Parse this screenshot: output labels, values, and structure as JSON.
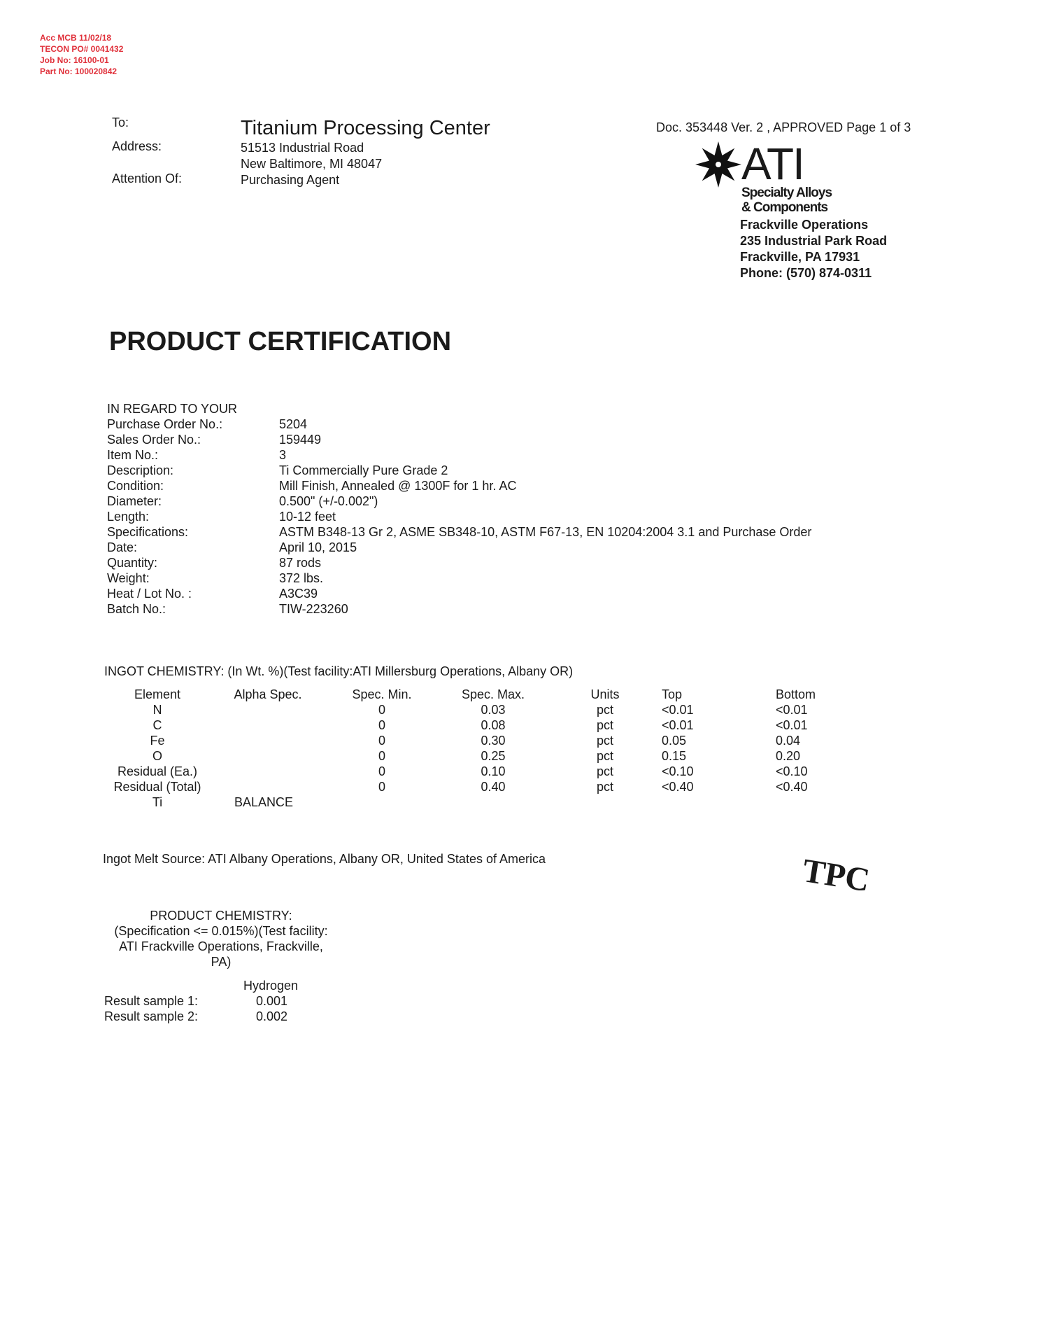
{
  "annotation": {
    "lines": [
      "Acc   MCB  11/02/18",
      "TECON PO# 0041432",
      "Job No: 16100-01",
      "Part No: 100020842"
    ],
    "color": "#e0303a"
  },
  "recipient": {
    "to_label": "To:",
    "address_label": "Address:",
    "attention_label": "Attention Of:",
    "name": "Titanium Processing Center",
    "address_line1": "51513 Industrial Road",
    "address_line2": "New Baltimore, MI 48047",
    "attention": "Purchasing Agent"
  },
  "doc_status": "Doc. 353448 Ver. 2 , APPROVED Page 1 of 3",
  "company": {
    "logo_text": "ATI",
    "logo_icon": "eight-point-star-icon",
    "tagline1": "Specialty Alloys",
    "tagline2": "& Components",
    "division": "Frackville Operations",
    "street": "235 Industrial Park Road",
    "city": "Frackville, PA 17931",
    "phone": "Phone: (570) 874-0311"
  },
  "title": "PRODUCT CERTIFICATION",
  "order": {
    "heading": "IN REGARD TO YOUR",
    "fields": [
      {
        "label": "Purchase Order No.:",
        "value": "5204"
      },
      {
        "label": "Sales Order No.:",
        "value": "159449"
      },
      {
        "label": "Item No.:",
        "value": "3"
      },
      {
        "label": "Description:",
        "value": "Ti Commercially Pure Grade 2"
      },
      {
        "label": "Condition:",
        "value": "Mill Finish, Annealed @ 1300F for 1 hr. AC"
      },
      {
        "label": "Diameter:",
        "value": "0.500\" (+/-0.002\")"
      },
      {
        "label": "Length:",
        "value": "10-12 feet"
      },
      {
        "label": "Specifications:",
        "value": "ASTM B348-13 Gr 2, ASME SB348-10, ASTM F67-13, EN 10204:2004 3.1 and Purchase Order"
      },
      {
        "label": "Date:",
        "value": "April 10, 2015"
      },
      {
        "label": "Quantity:",
        "value": "87 rods"
      },
      {
        "label": "Weight:",
        "value": "372 lbs."
      },
      {
        "label": "Heat / Lot No. :",
        "value": "A3C39"
      },
      {
        "label": "Batch No.:",
        "value": "TIW-223260"
      }
    ]
  },
  "ingot": {
    "heading": "INGOT CHEMISTRY: (In Wt. %)(Test facility:ATI Millersburg Operations, Albany OR)",
    "columns": [
      "Element",
      "Alpha Spec.",
      "Spec. Min.",
      "Spec. Max.",
      "Units",
      "Top",
      "Bottom"
    ],
    "rows": [
      [
        "N",
        "",
        "0",
        "0.03",
        "pct",
        "<0.01",
        "<0.01"
      ],
      [
        "C",
        "",
        "0",
        "0.08",
        "pct",
        "<0.01",
        "<0.01"
      ],
      [
        "Fe",
        "",
        "0",
        "0.30",
        "pct",
        "0.05",
        "0.04"
      ],
      [
        "O",
        "",
        "0",
        "0.25",
        "pct",
        "0.15",
        "0.20"
      ],
      [
        "Residual (Ea.)",
        "",
        "0",
        "0.10",
        "pct",
        "<0.10",
        "<0.10"
      ],
      [
        "Residual (Total)",
        "",
        "0",
        "0.40",
        "pct",
        "<0.40",
        "<0.40"
      ],
      [
        "Ti",
        "BALANCE",
        "",
        "",
        "",
        "",
        ""
      ]
    ],
    "melt_source": "Ingot Melt Source: ATI Albany Operations, Albany OR, United States of America"
  },
  "stamp": "TPC",
  "product_chem": {
    "heading_lines": [
      "PRODUCT CHEMISTRY:",
      "(Specification <= 0.015%)(Test facility:",
      "ATI Frackville Operations, Frackville,",
      "PA)"
    ],
    "column": "Hydrogen",
    "results": [
      {
        "label": "Result sample 1:",
        "value": "0.001"
      },
      {
        "label": "Result sample 2:",
        "value": "0.002"
      }
    ]
  }
}
